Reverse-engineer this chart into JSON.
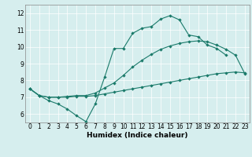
{
  "title": "",
  "xlabel": "Humidex (Indice chaleur)",
  "xlim_min": -0.5,
  "xlim_max": 23.5,
  "ylim_min": 5.5,
  "ylim_max": 12.5,
  "xticks": [
    0,
    1,
    2,
    3,
    4,
    5,
    6,
    7,
    8,
    9,
    10,
    11,
    12,
    13,
    14,
    15,
    16,
    17,
    18,
    19,
    20,
    21,
    22,
    23
  ],
  "yticks": [
    6,
    7,
    8,
    9,
    10,
    11,
    12
  ],
  "bg_color": "#d6eeee",
  "grid_color": "#ffffff",
  "line_color": "#1a7a6a",
  "line1_x": [
    0,
    1,
    2,
    3,
    4,
    5,
    6,
    7,
    8,
    9,
    10,
    11,
    12,
    13,
    14,
    15,
    16,
    17,
    18,
    19,
    20,
    21
  ],
  "line1_y": [
    7.5,
    7.1,
    6.8,
    6.6,
    6.3,
    5.9,
    5.55,
    6.6,
    8.2,
    9.9,
    9.9,
    10.8,
    11.1,
    11.2,
    11.65,
    11.85,
    11.6,
    10.7,
    10.6,
    10.1,
    9.9,
    9.5
  ],
  "line2_x": [
    0,
    1,
    2,
    3,
    4,
    5,
    6,
    7,
    8,
    9,
    10,
    11,
    12,
    13,
    14,
    15,
    16,
    17,
    18,
    19,
    20,
    21,
    22,
    23
  ],
  "line2_y": [
    7.5,
    7.1,
    7.0,
    7.0,
    7.0,
    7.05,
    7.05,
    7.1,
    7.2,
    7.3,
    7.4,
    7.5,
    7.6,
    7.7,
    7.8,
    7.9,
    8.0,
    8.1,
    8.2,
    8.3,
    8.4,
    8.45,
    8.5,
    8.45
  ],
  "line3_x": [
    0,
    1,
    2,
    3,
    4,
    5,
    6,
    7,
    8,
    9,
    10,
    11,
    12,
    13,
    14,
    15,
    16,
    17,
    18,
    19,
    20,
    21,
    22,
    23
  ],
  "line3_y": [
    7.5,
    7.1,
    7.0,
    7.0,
    7.05,
    7.1,
    7.1,
    7.25,
    7.55,
    7.85,
    8.3,
    8.8,
    9.2,
    9.55,
    9.85,
    10.05,
    10.2,
    10.3,
    10.35,
    10.3,
    10.1,
    9.85,
    9.5,
    8.4
  ],
  "tick_fontsize": 5.5,
  "xlabel_fontsize": 6.5,
  "marker_size": 2.2,
  "line_width": 0.8
}
